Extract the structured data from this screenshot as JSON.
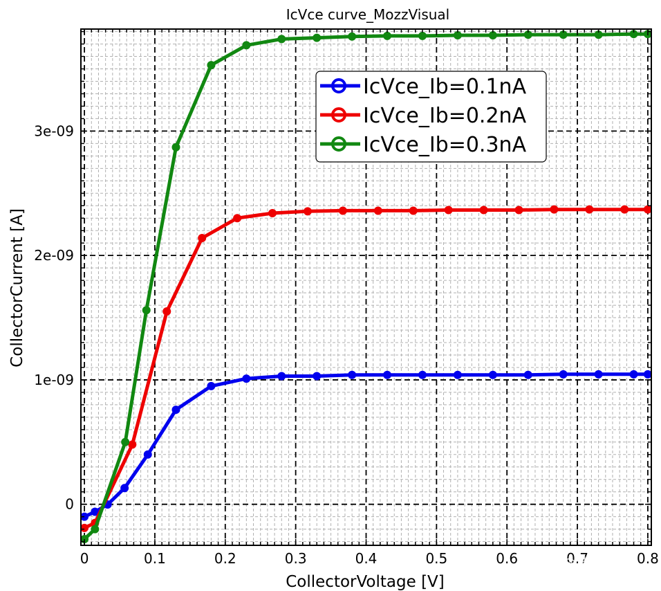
{
  "chart_data": {
    "type": "line",
    "title": "IcVce curve_MozzVisual",
    "xlabel": "CollectorVoltage [V]",
    "ylabel": "CollectorCurrent [A]",
    "xlim": [
      -0.005,
      0.805
    ],
    "ylim": [
      -3.3e-10,
      3.82e-09
    ],
    "x_ticks": [
      0,
      0.1,
      0.2,
      0.3,
      0.4,
      0.5,
      0.6,
      0.7,
      0.8
    ],
    "x_tick_labels": [
      "0",
      "0.1",
      "0.2",
      "0.3",
      "0.4",
      "0.5",
      "0.6",
      "0.7",
      "0.8"
    ],
    "y_ticks": [
      0,
      1e-09,
      2e-09,
      3e-09
    ],
    "y_tick_labels": [
      "0",
      "1e-09",
      "2e-09",
      "3e-09"
    ],
    "grid": true,
    "legend_position": "top-right",
    "series": [
      {
        "name": "IcVce_Ib=0.1nA",
        "color": "#0000ee",
        "x": [
          0,
          0.015,
          0.033,
          0.057,
          0.09,
          0.13,
          0.18,
          0.23,
          0.28,
          0.33,
          0.38,
          0.43,
          0.48,
          0.53,
          0.58,
          0.63,
          0.68,
          0.73,
          0.78,
          0.8
        ],
        "y": [
          -1e-10,
          -6e-11,
          -2e-12,
          1.3e-10,
          4e-10,
          7.6e-10,
          9.5e-10,
          1.01e-09,
          1.03e-09,
          1.03e-09,
          1.04e-09,
          1.04e-09,
          1.04e-09,
          1.04e-09,
          1.04e-09,
          1.04e-09,
          1.045e-09,
          1.045e-09,
          1.045e-09,
          1.045e-09
        ]
      },
      {
        "name": "IcVce_Ib=0.2nA",
        "color": "#ee0000",
        "x": [
          0,
          0.015,
          0.068,
          0.117,
          0.167,
          0.217,
          0.267,
          0.317,
          0.367,
          0.417,
          0.467,
          0.517,
          0.567,
          0.617,
          0.667,
          0.717,
          0.767,
          0.8
        ],
        "y": [
          -1.9e-10,
          -1.5e-10,
          4.8e-10,
          1.55e-09,
          2.14e-09,
          2.3e-09,
          2.34e-09,
          2.355e-09,
          2.36e-09,
          2.36e-09,
          2.36e-09,
          2.365e-09,
          2.365e-09,
          2.365e-09,
          2.37e-09,
          2.37e-09,
          2.37e-09,
          2.37e-09
        ]
      },
      {
        "name": "IcVce_Ib=0.3nA",
        "color": "#118811",
        "x": [
          0,
          0.015,
          0.058,
          0.088,
          0.13,
          0.18,
          0.23,
          0.28,
          0.33,
          0.38,
          0.43,
          0.48,
          0.53,
          0.58,
          0.63,
          0.68,
          0.73,
          0.78,
          0.8
        ],
        "y": [
          -2.8e-10,
          -2e-10,
          5e-10,
          1.56e-09,
          2.87e-09,
          3.53e-09,
          3.69e-09,
          3.74e-09,
          3.75e-09,
          3.76e-09,
          3.765e-09,
          3.765e-09,
          3.77e-09,
          3.77e-09,
          3.775e-09,
          3.775e-09,
          3.775e-09,
          3.78e-09,
          3.78e-09
        ]
      }
    ]
  },
  "watermark": {
    "text": "知乎 @懒小木"
  }
}
